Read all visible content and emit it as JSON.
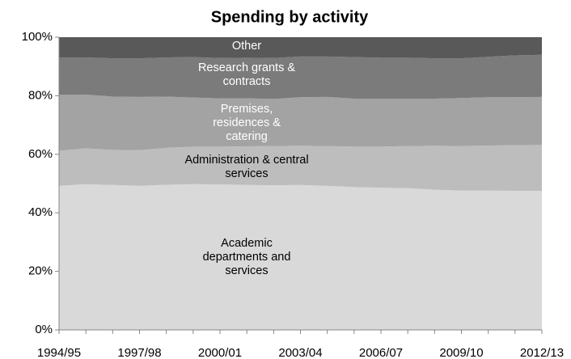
{
  "chart_data": {
    "type": "area",
    "stacked": true,
    "title": "Spending by activity",
    "categories": [
      "1994/95",
      null,
      null,
      "1997/98",
      null,
      null,
      "2000/01",
      null,
      null,
      "2003/04",
      null,
      null,
      "2006/07",
      null,
      null,
      "2009/10",
      null,
      null,
      "2012/13"
    ],
    "series": [
      {
        "name": "Academic departments and services",
        "color": "#d9d9d9",
        "values": [
          49.2,
          49.8,
          49.5,
          49.2,
          49.6,
          49.8,
          49.7,
          49.5,
          49.4,
          49.5,
          49.2,
          48.8,
          48.6,
          48.4,
          47.9,
          47.6,
          47.6,
          47.5,
          47.5
        ]
      },
      {
        "name": "Administration & central services",
        "color": "#bdbdbd",
        "values": [
          12.0,
          12.2,
          12.0,
          12.2,
          12.6,
          12.8,
          12.9,
          13.2,
          13.4,
          13.4,
          13.6,
          13.8,
          14.0,
          14.4,
          15.0,
          15.2,
          15.4,
          15.6,
          15.7
        ]
      },
      {
        "name": "Premises, residences & catering",
        "color": "#a3a3a3",
        "values": [
          19.2,
          18.4,
          18.2,
          18.2,
          17.5,
          16.8,
          16.5,
          16.4,
          16.1,
          16.6,
          16.8,
          16.4,
          16.4,
          16.2,
          16.1,
          16.4,
          16.5,
          16.4,
          16.4
        ]
      },
      {
        "name": "Research grants & contracts",
        "color": "#7b7b7b",
        "values": [
          12.6,
          12.7,
          13.1,
          13.2,
          13.4,
          13.8,
          13.8,
          13.9,
          14.0,
          13.9,
          13.8,
          14.2,
          14.0,
          14.0,
          13.8,
          13.6,
          13.8,
          14.3,
          14.4
        ]
      },
      {
        "name": "Other",
        "color": "#595959",
        "values": [
          7.0,
          6.9,
          7.2,
          7.2,
          6.9,
          6.8,
          7.1,
          7.0,
          7.1,
          6.6,
          6.6,
          6.8,
          7.0,
          7.0,
          7.2,
          7.2,
          6.7,
          6.2,
          6.0
        ]
      }
    ],
    "ylim": [
      0,
      100
    ],
    "yticks": [
      {
        "value": 0,
        "label": "0%"
      },
      {
        "value": 20,
        "label": "20%"
      },
      {
        "value": 40,
        "label": "40%"
      },
      {
        "value": 60,
        "label": "60%"
      },
      {
        "value": 80,
        "label": "80%"
      },
      {
        "value": 100,
        "label": "100%"
      }
    ]
  }
}
